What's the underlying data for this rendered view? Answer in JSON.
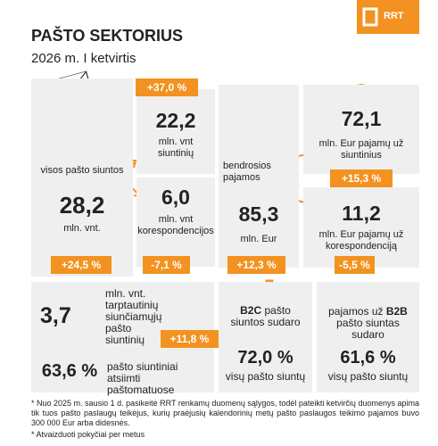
{
  "header": {
    "title": "PAŠTO SEKTORIUS",
    "subtitle": "2026 m. I ketvirtis",
    "logo": "RRT"
  },
  "all_items": {
    "label": "visos pašto siuntos",
    "value": "28,2",
    "unit": "mln. vnt.",
    "change": "+24,5 %"
  },
  "parcels": {
    "value": "22,2",
    "unit": "mln. vnt siuntinių",
    "change": "+37,0 %"
  },
  "letters": {
    "value": "6,0",
    "unit": "mln. vnt korespondencijos",
    "change": "-7,1 %"
  },
  "revenue": {
    "label": "bendrosios pajamos",
    "value": "85,3",
    "unit": "mln. Eur",
    "change": "+12,3 %"
  },
  "parcel_revenue": {
    "value": "72,1",
    "unit": "mln. Eur pajamų už siuntinius",
    "change": "+15,3 %"
  },
  "letter_revenue": {
    "value": "11,2",
    "unit": "mln. Eur pajamų už korespondenciją",
    "change": "-5,5 %"
  },
  "international": {
    "value": "3,7",
    "unit": "mln. vnt. tarptautinių siunčiamųjų pašto siuntinių",
    "change": "+11,8 %"
  },
  "lockers": {
    "value": "63,6 %",
    "label": "pašto siuntiniai atsiimti paštomatuose"
  },
  "b2c": {
    "bold": "B2C",
    "label": "pašto siuntos sudaro",
    "value": "72,0 %",
    "unit": "visų pašto siuntų"
  },
  "b2b": {
    "label_before": "pajamos už",
    "bold": "B2B",
    "label_after": "pašto siuntas sudaro",
    "value": "61,6 %",
    "unit": "visų pašto siuntų"
  },
  "footnotes": [
    "* Nuo 2025 m. sausio 1 d. pasikeitė RRT renkamų duomenų sąlygos, todėl pateikti ketvirčių duomenys apima tik tuos pašto paslaugų teikėjus, kurių praėjusių kalendorinių metų pašto paslaugos teikimo pajamos buvo 300 000 Eur arba didesnės.",
    "* Atvaizduoti pokyčiai per metus"
  ]
}
